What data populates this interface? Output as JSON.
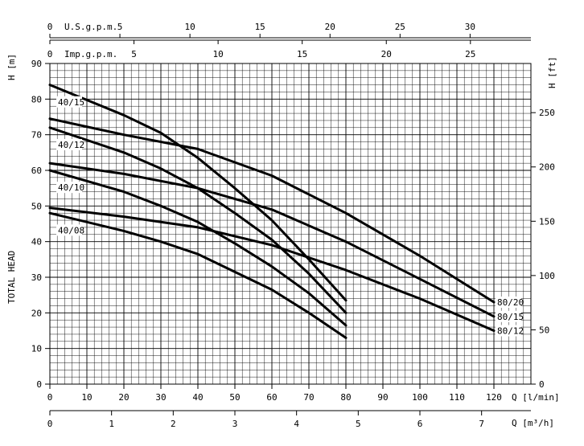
{
  "chart_data": {
    "type": "line",
    "title": "",
    "axes": {
      "y_left": {
        "label": "H [m]",
        "range": [
          0,
          90
        ],
        "ticks": [
          0,
          10,
          20,
          30,
          40,
          50,
          60,
          70,
          80,
          90
        ]
      },
      "y_left_title": "TOTAL HEAD",
      "y_right": {
        "label": "H [ft]",
        "range": [
          0,
          295.3
        ],
        "ticks": [
          0,
          50,
          100,
          150,
          200,
          250
        ]
      },
      "x_bottom_lmin": {
        "label": "Q [l/min]",
        "range": [
          0,
          130
        ],
        "ticks": [
          0,
          10,
          20,
          30,
          40,
          50,
          60,
          70,
          80,
          90,
          100,
          110,
          120
        ]
      },
      "x_bottom_m3h": {
        "label": "Q [m³/h]",
        "ticks": [
          0,
          1,
          2,
          3,
          4,
          5,
          6,
          7
        ]
      },
      "x_top_usgpm": {
        "label": "U.S.g.p.m.",
        "ticks": [
          0,
          5,
          10,
          15,
          20,
          25,
          30
        ]
      },
      "x_top_impgpm": {
        "label": "Imp.g.p.m.",
        "ticks": [
          0,
          5,
          10,
          15,
          20,
          25
        ]
      }
    },
    "grid": true,
    "series": [
      {
        "name": "40/15",
        "x": [
          0,
          20,
          30,
          40,
          50,
          60,
          70,
          80
        ],
        "y": [
          84,
          75.5,
          70.5,
          63.5,
          55,
          46,
          35,
          23.5
        ]
      },
      {
        "name": "40/12",
        "x": [
          0,
          20,
          30,
          40,
          50,
          60,
          70,
          80
        ],
        "y": [
          72,
          65,
          60.5,
          55,
          48,
          40.5,
          31,
          20
        ]
      },
      {
        "name": "40/10",
        "x": [
          0,
          20,
          30,
          40,
          50,
          60,
          70,
          80
        ],
        "y": [
          60,
          54,
          50,
          45.5,
          39.5,
          33,
          25.5,
          16.5
        ]
      },
      {
        "name": "40/08",
        "x": [
          0,
          20,
          30,
          40,
          50,
          60,
          70,
          80
        ],
        "y": [
          48,
          43,
          40,
          36.5,
          31.5,
          26.5,
          20,
          13
        ]
      },
      {
        "name": "80/20",
        "x": [
          0,
          20,
          40,
          60,
          80,
          100,
          120
        ],
        "y": [
          74.5,
          70,
          66,
          58.5,
          48,
          36,
          23
        ]
      },
      {
        "name": "80/15",
        "x": [
          0,
          20,
          40,
          60,
          80,
          100,
          120
        ],
        "y": [
          62,
          59,
          55,
          49,
          40,
          29.5,
          19
        ]
      },
      {
        "name": "80/12",
        "x": [
          0,
          20,
          40,
          60,
          80,
          100,
          120
        ],
        "y": [
          49.5,
          47,
          44,
          39,
          32,
          24,
          15
        ]
      }
    ]
  }
}
